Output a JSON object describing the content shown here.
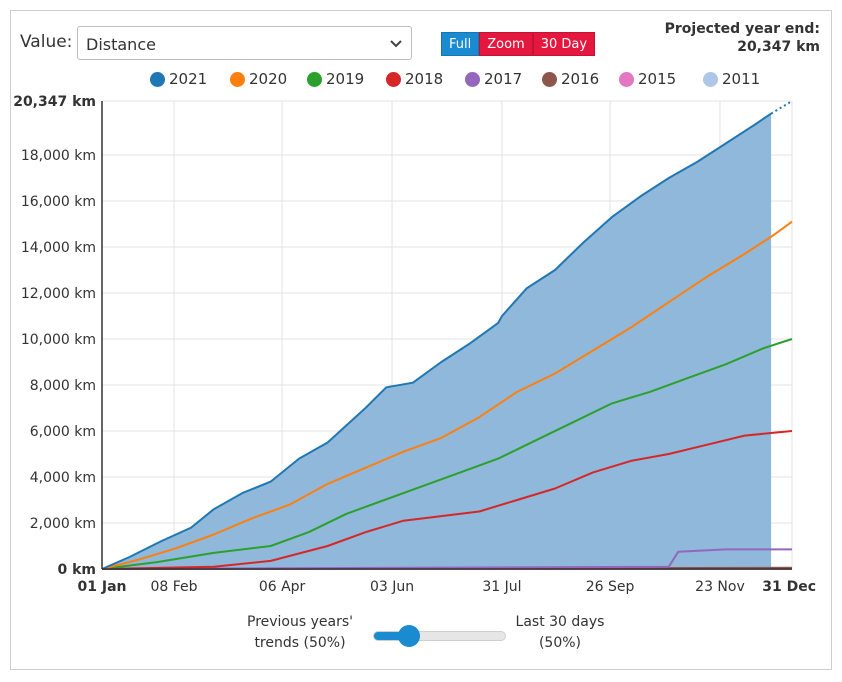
{
  "controls": {
    "value_label": "Value:",
    "value_selected": "Distance",
    "buttons": [
      "Full",
      "Zoom",
      "30 Day"
    ],
    "projection_title": "Projected year end:",
    "projection_value": "20,347 km"
  },
  "slider": {
    "left_line1": "Previous years'",
    "left_line2": "trends (50%)",
    "right_line1": "Last 30 days",
    "right_line2": "(50%)",
    "value_percent": 50
  },
  "colors": {
    "accent": "#1a8bd0",
    "button_red": "#e4173f"
  },
  "chart_data": {
    "type": "line",
    "title": "",
    "xlabel": "",
    "ylabel": "",
    "ylim": [
      0,
      20347
    ],
    "y_ticks": [
      0,
      2000,
      4000,
      6000,
      8000,
      10000,
      12000,
      14000,
      16000,
      18000,
      20347
    ],
    "y_tick_labels": [
      "0 km",
      "2,000 km",
      "4,000 km",
      "6,000 km",
      "8,000 km",
      "10,000 km",
      "12,000 km",
      "14,000 km",
      "16,000 km",
      "18,000 km",
      "20,347 km"
    ],
    "x_tick_labels": [
      "01 Jan",
      "08 Feb",
      "06 Apr",
      "03 Jun",
      "31 Jul",
      "26 Sep",
      "23 Nov",
      "31 Dec"
    ],
    "x_tick_days": [
      1,
      39,
      96,
      154,
      212,
      269,
      327,
      365
    ],
    "legend_position": "top",
    "grid": true,
    "series": [
      {
        "name": "2021",
        "color": "#1f77b4",
        "area": true,
        "x": [
          1,
          15,
          32,
          48,
          60,
          75,
          90,
          105,
          120,
          140,
          151,
          165,
          180,
          195,
          210,
          212,
          225,
          240,
          255,
          270,
          285,
          300,
          315,
          330,
          345,
          354
        ],
        "y": [
          0,
          500,
          1200,
          1800,
          2600,
          3300,
          3800,
          4800,
          5500,
          7000,
          7900,
          8100,
          9000,
          9800,
          10700,
          11000,
          12200,
          13000,
          14200,
          15300,
          16200,
          17000,
          17700,
          18500,
          19300,
          19800
        ],
        "projection": {
          "x": [
            354,
            365
          ],
          "y": [
            19800,
            20347
          ]
        }
      },
      {
        "name": "2020",
        "color": "#ff7f0e",
        "x": [
          1,
          20,
          40,
          60,
          80,
          100,
          120,
          140,
          160,
          180,
          200,
          220,
          240,
          260,
          280,
          300,
          320,
          340,
          355,
          365
        ],
        "y": [
          0,
          400,
          900,
          1500,
          2200,
          2800,
          3700,
          4400,
          5100,
          5700,
          6600,
          7700,
          8500,
          9500,
          10500,
          11600,
          12700,
          13700,
          14500,
          15100
        ]
      },
      {
        "name": "2019",
        "color": "#2ca02c",
        "x": [
          1,
          30,
          60,
          90,
          110,
          130,
          150,
          170,
          190,
          210,
          230,
          250,
          270,
          290,
          310,
          330,
          350,
          365
        ],
        "y": [
          0,
          300,
          700,
          1000,
          1600,
          2400,
          3000,
          3600,
          4200,
          4800,
          5600,
          6400,
          7200,
          7700,
          8300,
          8900,
          9600,
          10000
        ]
      },
      {
        "name": "2018",
        "color": "#d62728",
        "x": [
          1,
          60,
          90,
          120,
          140,
          160,
          180,
          200,
          220,
          240,
          260,
          280,
          300,
          320,
          340,
          365
        ],
        "y": [
          0,
          100,
          350,
          1000,
          1600,
          2100,
          2300,
          2500,
          3000,
          3500,
          4200,
          4700,
          5000,
          5400,
          5800,
          6000
        ]
      },
      {
        "name": "2017",
        "color": "#9467bd",
        "x": [
          1,
          300,
          305,
          330,
          365
        ],
        "y": [
          0,
          100,
          750,
          850,
          850
        ]
      },
      {
        "name": "2016",
        "color": "#8c564b",
        "x": [
          1,
          365
        ],
        "y": [
          0,
          50
        ]
      },
      {
        "name": "2015",
        "color": "#e377c2",
        "x": [
          1,
          365
        ],
        "y": [
          0,
          0
        ]
      },
      {
        "name": "2011",
        "color": "#aec7e8",
        "x": [
          1,
          365
        ],
        "y": [
          0,
          0
        ]
      }
    ]
  }
}
